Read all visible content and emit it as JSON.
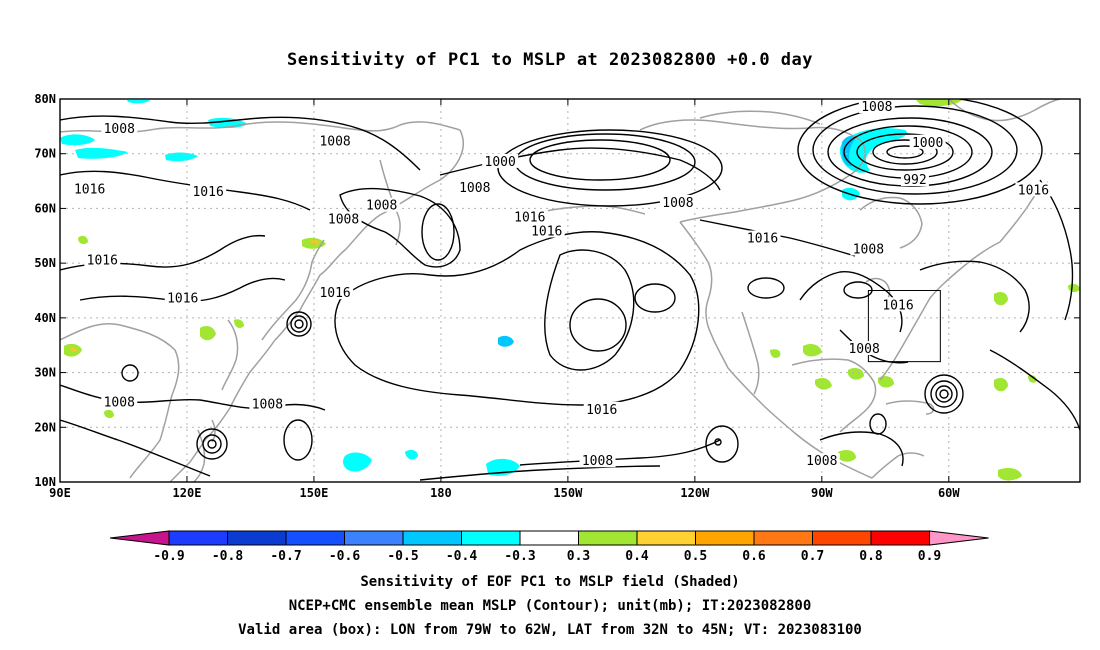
{
  "title": "Sensitivity of PC1 to MSLP at 2023082800 +0.0 day",
  "map": {
    "lon_labels": [
      "90E",
      "120E",
      "150E",
      "180",
      "150W",
      "120W",
      "90W",
      "60W"
    ],
    "lat_labels": [
      "80N",
      "70N",
      "60N",
      "50N",
      "40N",
      "30N",
      "20N",
      "10N"
    ],
    "contour_labels": [
      {
        "text": "1008",
        "lon": 104,
        "lat": 74.5
      },
      {
        "text": "1008",
        "lon": 155,
        "lat": 72.2
      },
      {
        "text": "1016",
        "lon": 97,
        "lat": 63.5
      },
      {
        "text": "1016",
        "lon": 125,
        "lat": 63
      },
      {
        "text": "1008",
        "lon": 157,
        "lat": 58
      },
      {
        "text": "1008",
        "lon": 166,
        "lat": 60.5
      },
      {
        "text": "1000",
        "lon": 194,
        "lat": 68.5
      },
      {
        "text": "1008",
        "lon": 188,
        "lat": 63.7
      },
      {
        "text": "1016",
        "lon": 201,
        "lat": 58.3
      },
      {
        "text": "1016",
        "lon": 205,
        "lat": 55.8
      },
      {
        "text": "1008",
        "lon": 236,
        "lat": 61
      },
      {
        "text": "1016",
        "lon": 256,
        "lat": 54.5
      },
      {
        "text": "1008",
        "lon": 283,
        "lat": 78.5
      },
      {
        "text": "1000",
        "lon": 295,
        "lat": 72
      },
      {
        "text": "992",
        "lon": 292,
        "lat": 65.2
      },
      {
        "text": "1016",
        "lon": 320,
        "lat": 63.3
      },
      {
        "text": "1008",
        "lon": 281,
        "lat": 52.5
      },
      {
        "text": "1016",
        "lon": 100,
        "lat": 50.5
      },
      {
        "text": "1016",
        "lon": 119,
        "lat": 43.5
      },
      {
        "text": "1016",
        "lon": 155,
        "lat": 44.5
      },
      {
        "text": "1016",
        "lon": 288,
        "lat": 42.3
      },
      {
        "text": "1008",
        "lon": 280,
        "lat": 34.3
      },
      {
        "text": "1008",
        "lon": 104,
        "lat": 24.5
      },
      {
        "text": "1008",
        "lon": 139,
        "lat": 24.2
      },
      {
        "text": "1016",
        "lon": 218,
        "lat": 23.2
      },
      {
        "text": "1008",
        "lon": 217,
        "lat": 13.8
      },
      {
        "text": "1008",
        "lon": 270,
        "lat": 13.8
      }
    ],
    "valid_box": {
      "lon_min": 281,
      "lon_max": 298,
      "lat_min": 32,
      "lat_max": 45
    },
    "shading_colors": {
      "cyan": "#00ffff",
      "light_blue": "#00c8ff",
      "green": "#a0e632",
      "yellow": "#f0f000",
      "orange": "#ffc828"
    }
  },
  "colorbar": {
    "labels": [
      "-0.9",
      "-0.8",
      "-0.7",
      "-0.6",
      "-0.5",
      "-0.4",
      "-0.3",
      "0.3",
      "0.4",
      "0.5",
      "0.6",
      "0.7",
      "0.8",
      "0.9"
    ],
    "colors": [
      "#1e3cff",
      "#0a3cd2",
      "#1450ff",
      "#3c82ff",
      "#00c8ff",
      "#00ffff",
      "#ffffff",
      "#a0e632",
      "#ffd232",
      "#ffa500",
      "#ff7814",
      "#ff4600",
      "#ff0000"
    ],
    "low_end_color": "#c8148c",
    "high_end_color": "#ff96c8"
  },
  "captions": [
    "Sensitivity of EOF PC1 to MSLP field (Shaded)",
    "NCEP+CMC ensemble mean MSLP (Contour); unit(mb); IT:2023082800",
    "Valid area (box): LON from 79W to 62W, LAT from 32N to 45N; VT: 2023083100"
  ]
}
